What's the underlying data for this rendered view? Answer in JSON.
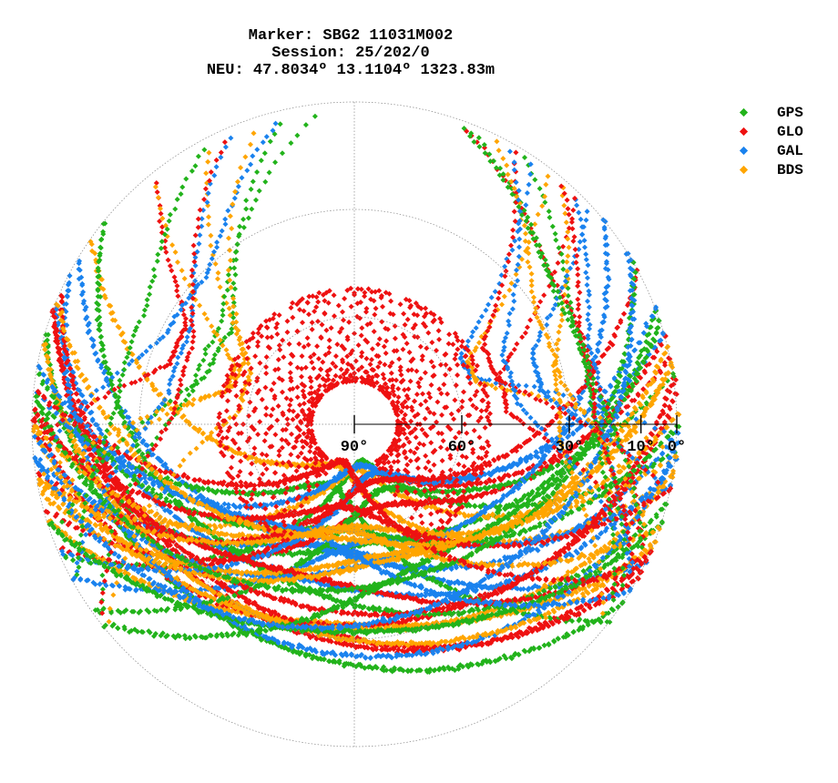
{
  "title": {
    "line1": "Marker: SBG2 11031M002",
    "line2": "Session: 25/202/0",
    "line3": "NEU: 47.8034º 13.1104º 1323.83m"
  },
  "chart_data": {
    "type": "scatter",
    "subtype": "polar-skyplot",
    "title": [
      "Marker: SBG2 11031M002",
      "Session: 25/202/0",
      "NEU: 47.8034º 13.1104º 1323.83m"
    ],
    "radial_axis": {
      "quantity": "elevation",
      "ticks": [
        90,
        60,
        30,
        10,
        0
      ],
      "tick_labels": [
        "90°",
        "60°",
        "30°",
        "10°",
        "0°"
      ],
      "range": [
        90,
        0
      ]
    },
    "grid": true,
    "legend_position": "top-right",
    "series": [
      {
        "name": "GPS",
        "color": "#22b31b"
      },
      {
        "name": "GLO",
        "color": "#ee1111"
      },
      {
        "name": "GAL",
        "color": "#1a82ee"
      },
      {
        "name": "BDS",
        "color": "#ffa500"
      }
    ],
    "note_observation_regions": {
      "polar_gap_elevation_min_north": 58,
      "GLO_ring_elevation_range_north": [
        52,
        78
      ]
    }
  }
}
